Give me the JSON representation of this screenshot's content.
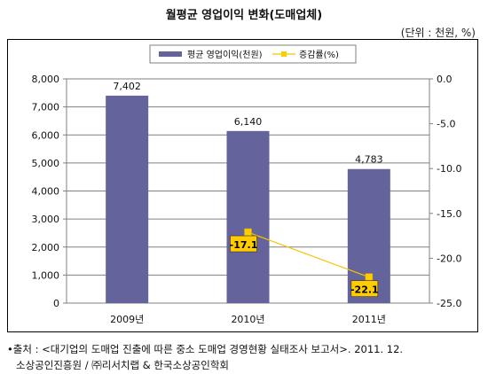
{
  "header": {
    "title": "월평균 영업이익 변화(도매업체)",
    "unit": "(단위 : 천원, %)"
  },
  "source": {
    "line1": "•출처 : <대기업의 도매업 진출에 따른 중소 도매업 경영현황 실태조사 보고서>. 2011. 12.",
    "line2": "소상공인진흥원 / ㈜리서치랩 & 한국소상공인학회"
  },
  "colors": {
    "bar": "#64639b",
    "line": "#f5c400",
    "marker": "#ffcc00",
    "plot_bg": "#ffffff",
    "label_box": "#ffcc00"
  },
  "chart_data": {
    "type": "bar",
    "categories": [
      "2009년",
      "2010년",
      "2011년"
    ],
    "series": [
      {
        "name": "평균 영업이익(천원)",
        "type": "bar",
        "axis": "left",
        "values": [
          7402,
          6140,
          4783
        ],
        "labels": [
          "7,402",
          "6,140",
          "4,783"
        ]
      },
      {
        "name": "증감률(%)",
        "type": "line",
        "axis": "right",
        "values": [
          null,
          -17.1,
          -22.1
        ],
        "labels": [
          "",
          "-17.1",
          "-22.1"
        ]
      }
    ],
    "y_left": {
      "min": 0,
      "max": 8000,
      "ticks": [
        "0",
        "1,000",
        "2,000",
        "3,000",
        "4,000",
        "5,000",
        "6,000",
        "7,000",
        "8,000"
      ]
    },
    "y_right": {
      "min": -25,
      "max": 0,
      "ticks": [
        "0.0",
        "-5.0",
        "-10.0",
        "-15.0",
        "-20.0",
        "-25.0"
      ]
    },
    "legend_position": "top",
    "grid": true
  }
}
